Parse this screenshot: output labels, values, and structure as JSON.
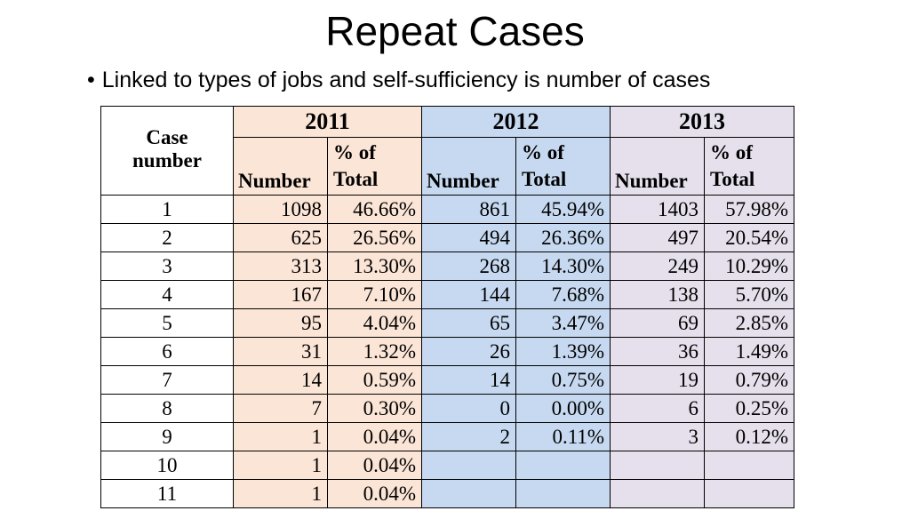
{
  "title": "Repeat Cases",
  "bullet": "Linked to types of jobs and self-sufficiency is number of cases",
  "table": {
    "case_header": "Case number",
    "years": [
      "2011",
      "2012",
      "2013"
    ],
    "number_header": "Number",
    "pct_header": "% of Total",
    "rows": [
      [
        "1",
        "1098",
        "46.66%",
        "861",
        "45.94%",
        "1403",
        "57.98%"
      ],
      [
        "2",
        "625",
        "26.56%",
        "494",
        "26.36%",
        "497",
        "20.54%"
      ],
      [
        "3",
        "313",
        "13.30%",
        "268",
        "14.30%",
        "249",
        "10.29%"
      ],
      [
        "4",
        "167",
        "7.10%",
        "144",
        "7.68%",
        "138",
        "5.70%"
      ],
      [
        "5",
        "95",
        "4.04%",
        "65",
        "3.47%",
        "69",
        "2.85%"
      ],
      [
        "6",
        "31",
        "1.32%",
        "26",
        "1.39%",
        "36",
        "1.49%"
      ],
      [
        "7",
        "14",
        "0.59%",
        "14",
        "0.75%",
        "19",
        "0.79%"
      ],
      [
        "8",
        "7",
        "0.30%",
        "0",
        "0.00%",
        "6",
        "0.25%"
      ],
      [
        "9",
        "1",
        "0.04%",
        "2",
        "0.11%",
        "3",
        "0.12%"
      ],
      [
        "10",
        "1",
        "0.04%"
      ],
      [
        "11",
        "1",
        "0.04%"
      ]
    ]
  }
}
